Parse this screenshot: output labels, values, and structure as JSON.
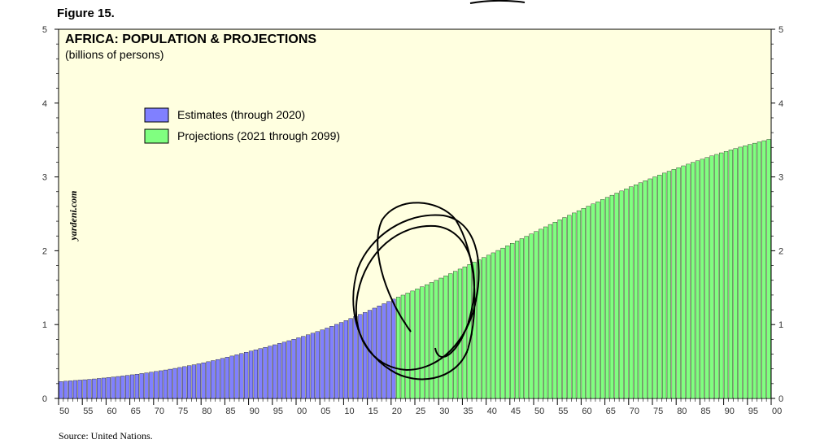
{
  "figure_label": "Figure 15.",
  "source": "Source: United Nations.",
  "watermark": "yardeni.com",
  "colors": {
    "plot_background": "#ffffe0",
    "estimates": "#8080ff",
    "projections": "#80ff80"
  },
  "chart_data": {
    "type": "bar",
    "title": "AFRICA: POPULATION & PROJECTIONS",
    "subtitle": "(billions of persons)",
    "xlabel": "",
    "ylabel": "",
    "ylim": [
      0,
      5
    ],
    "y_ticks": [
      "0",
      "1",
      "2",
      "3",
      "4",
      "5"
    ],
    "x_range": [
      1950,
      2099
    ],
    "x_tick_labels": [
      "50",
      "55",
      "60",
      "65",
      "70",
      "75",
      "80",
      "85",
      "90",
      "95",
      "00",
      "05",
      "10",
      "15",
      "20",
      "25",
      "30",
      "35",
      "40",
      "45",
      "50",
      "55",
      "60",
      "65",
      "70",
      "75",
      "80",
      "85",
      "90",
      "95",
      "00"
    ],
    "grid": false,
    "legend_position": "top-left",
    "series": [
      {
        "name": "Estimates (through 2020)",
        "color": "#8080ff",
        "start_year": 1950,
        "values": [
          0.228,
          0.233,
          0.238,
          0.243,
          0.248,
          0.253,
          0.258,
          0.264,
          0.27,
          0.276,
          0.283,
          0.29,
          0.297,
          0.304,
          0.312,
          0.32,
          0.328,
          0.337,
          0.346,
          0.355,
          0.365,
          0.375,
          0.385,
          0.396,
          0.407,
          0.419,
          0.431,
          0.443,
          0.456,
          0.469,
          0.483,
          0.497,
          0.512,
          0.527,
          0.542,
          0.558,
          0.574,
          0.591,
          0.608,
          0.625,
          0.641,
          0.658,
          0.675,
          0.692,
          0.709,
          0.727,
          0.745,
          0.763,
          0.782,
          0.801,
          0.821,
          0.841,
          0.862,
          0.884,
          0.906,
          0.929,
          0.953,
          0.978,
          1.003,
          1.029,
          1.055,
          1.082,
          1.109,
          1.137,
          1.165,
          1.194,
          1.223,
          1.253,
          1.283,
          1.314,
          1.345
        ]
      },
      {
        "name": "Projections (2021 through 2099)",
        "color": "#80ff80",
        "start_year": 2021,
        "values": [
          1.372,
          1.399,
          1.427,
          1.455,
          1.483,
          1.512,
          1.541,
          1.57,
          1.6,
          1.63,
          1.66,
          1.69,
          1.721,
          1.752,
          1.783,
          1.814,
          1.845,
          1.877,
          1.908,
          1.94,
          1.972,
          2.004,
          2.036,
          2.068,
          2.1,
          2.132,
          2.164,
          2.196,
          2.228,
          2.26,
          2.292,
          2.324,
          2.356,
          2.387,
          2.419,
          2.45,
          2.481,
          2.512,
          2.543,
          2.574,
          2.604,
          2.634,
          2.664,
          2.694,
          2.723,
          2.752,
          2.781,
          2.81,
          2.838,
          2.866,
          2.894,
          2.921,
          2.948,
          2.974,
          3.001,
          3.026,
          3.052,
          3.077,
          3.102,
          3.126,
          3.15,
          3.173,
          3.197,
          3.219,
          3.241,
          3.263,
          3.285,
          3.305,
          3.326,
          3.346,
          3.366,
          3.385,
          3.404,
          3.422,
          3.44,
          3.457,
          3.475,
          3.491,
          3.508
        ]
      }
    ]
  }
}
